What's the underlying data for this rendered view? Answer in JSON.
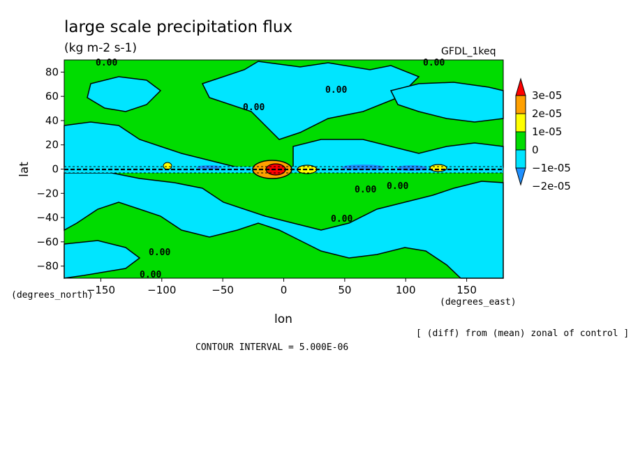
{
  "figure": {
    "title": "large scale precipitation flux",
    "units": "(kg m-2 s-1)",
    "model": "GFDL_1keq",
    "xunits": "(degrees_east)",
    "yunits": "(degrees_north)",
    "diff_note": "[ (diff) from (mean) zonal of control ]",
    "contour_interval": "CONTOUR INTERVAL = 5.000E-06",
    "colors": {
      "lt_-1e-05": "#1e90ff",
      "lt_0": "#00e5ff",
      "lt_1e-05": "#00dc00",
      "lt_2e-05": "#ffff00",
      "lt_3e-05": "#ffa000",
      "gt_3e-05": "#ff0000"
    }
  },
  "chart_data": {
    "type": "heatmap",
    "title": "large scale precipitation flux",
    "xlabel": "lon",
    "ylabel": "lat",
    "xlim": [
      -180,
      180
    ],
    "ylim": [
      -90,
      90
    ],
    "xticks": [
      -150,
      -100,
      -50,
      0,
      50,
      100,
      150
    ],
    "yticks": [
      -80,
      -60,
      -40,
      -20,
      0,
      20,
      40,
      60,
      80
    ],
    "colorbar": {
      "levels": [
        "-2e-05",
        "-1e-05",
        "0",
        "1e-05",
        "2e-05",
        "3e-05"
      ],
      "colors": [
        "#1e90ff",
        "#00e5ff",
        "#00dc00",
        "#ffff00",
        "#ffa000",
        "#ff0000"
      ]
    },
    "contour_labels": [
      "0.00"
    ],
    "contour_interval": 5e-06,
    "notes": "Field is mostly between -1e-05 and 1e-05; strong positive anomalies (up to >3e-05) concentrated near the equator around lon -10 to 0, and a small positive patch near lon 125 at the equator."
  }
}
